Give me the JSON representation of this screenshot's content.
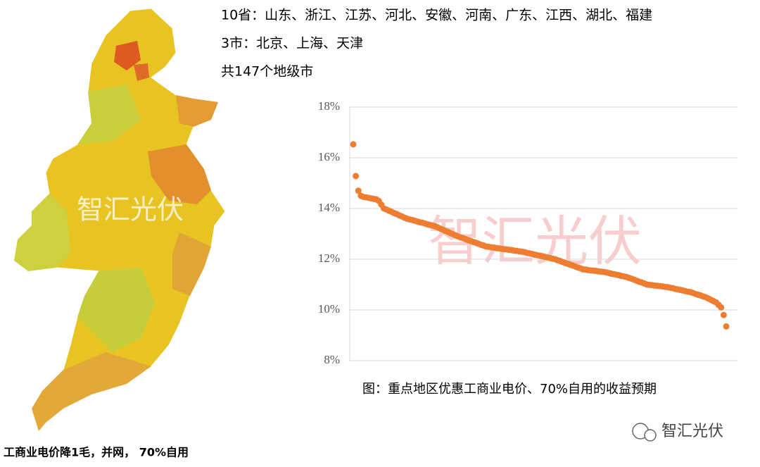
{
  "header": {
    "provinces": "10省：山东、浙江、江苏、河北、安徽、河南、广东、江西、湖北、福建",
    "cities": "3市：北京、上海、天津",
    "count": "共147个地级市"
  },
  "map_caption": "工商业电价降1毛，并网， 70%自用",
  "watermark": "智汇光伏",
  "chart_data": {
    "type": "scatter",
    "caption": "图：重点地区优惠工商业电价、70%自用的收益预期",
    "color": "#ed7d31",
    "grid": true,
    "ylim": [
      8,
      18
    ],
    "yticks": [
      {
        "value": 8,
        "label": "8%"
      },
      {
        "value": 10,
        "label": "10%"
      },
      {
        "value": 12,
        "label": "12%"
      },
      {
        "value": 14,
        "label": "14%"
      },
      {
        "value": 16,
        "label": "16%"
      },
      {
        "value": 18,
        "label": "18%"
      }
    ],
    "values": [
      16.53,
      15.28,
      14.7,
      14.5,
      14.46,
      14.44,
      14.42,
      14.4,
      14.38,
      14.36,
      14.3,
      14.15,
      14.0,
      13.96,
      13.91,
      13.87,
      13.82,
      13.78,
      13.73,
      13.69,
      13.64,
      13.6,
      13.57,
      13.55,
      13.52,
      13.49,
      13.46,
      13.44,
      13.41,
      13.38,
      13.35,
      13.33,
      13.3,
      13.26,
      13.21,
      13.17,
      13.12,
      13.08,
      13.03,
      12.99,
      12.94,
      12.9,
      12.86,
      12.83,
      12.79,
      12.75,
      12.72,
      12.68,
      12.65,
      12.61,
      12.57,
      12.54,
      12.5,
      12.49,
      12.47,
      12.46,
      12.44,
      12.43,
      12.41,
      12.4,
      12.39,
      12.37,
      12.36,
      12.34,
      12.33,
      12.31,
      12.3,
      12.28,
      12.25,
      12.23,
      12.21,
      12.18,
      12.16,
      12.14,
      12.12,
      12.09,
      12.07,
      12.05,
      12.02,
      12.0,
      11.96,
      11.93,
      11.89,
      11.85,
      11.82,
      11.78,
      11.75,
      11.71,
      11.67,
      11.64,
      11.6,
      11.59,
      11.57,
      11.56,
      11.55,
      11.54,
      11.52,
      11.51,
      11.5,
      11.48,
      11.46,
      11.43,
      11.41,
      11.39,
      11.37,
      11.34,
      11.32,
      11.3,
      11.26,
      11.23,
      11.19,
      11.15,
      11.11,
      11.08,
      11.04,
      11.0,
      10.99,
      10.98,
      10.96,
      10.95,
      10.94,
      10.93,
      10.91,
      10.9,
      10.88,
      10.86,
      10.83,
      10.81,
      10.79,
      10.77,
      10.74,
      10.72,
      10.7,
      10.67,
      10.63,
      10.6,
      10.57,
      10.53,
      10.5,
      10.45,
      10.4,
      10.35,
      10.3,
      10.2,
      10.1,
      9.8,
      9.35
    ]
  }
}
